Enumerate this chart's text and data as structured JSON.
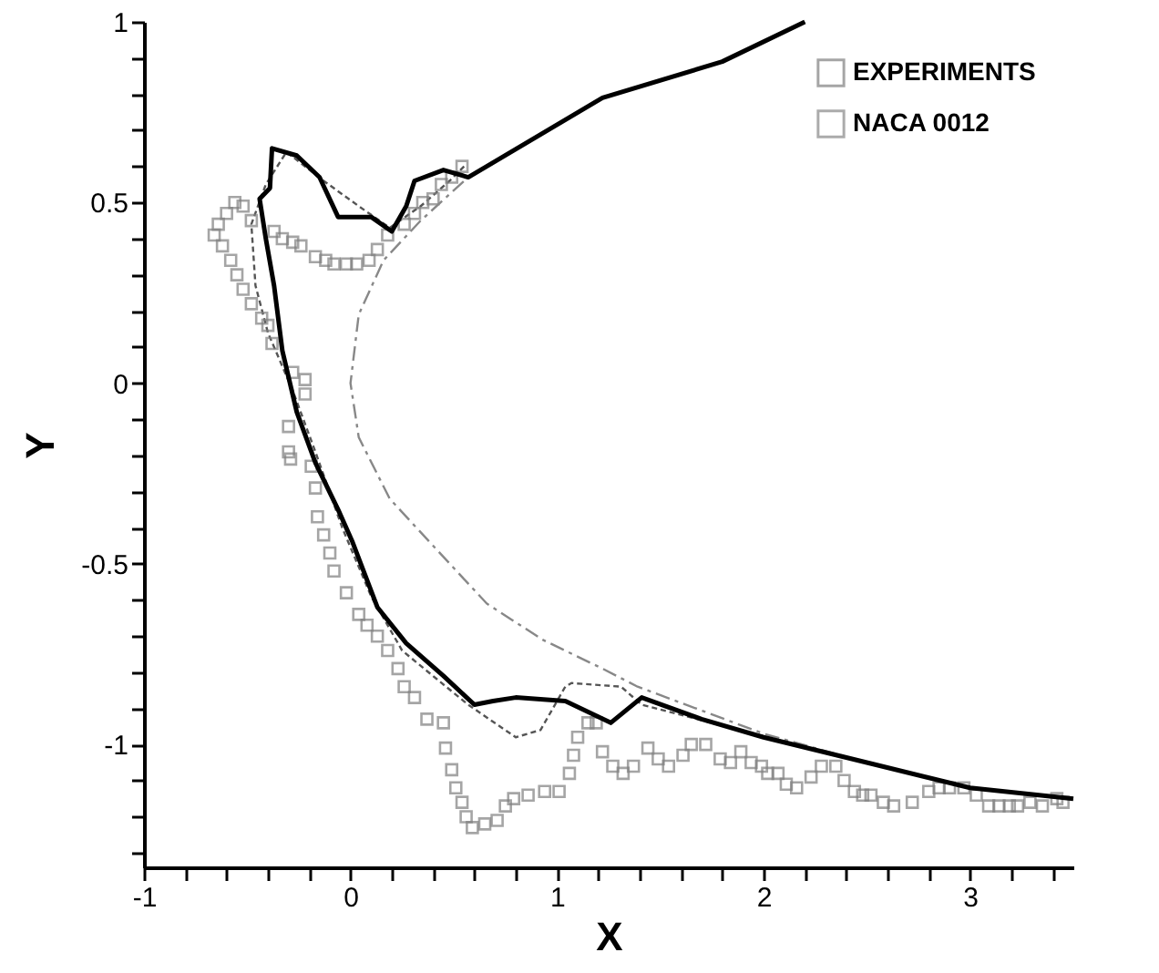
{
  "chart_data": {
    "type": "line",
    "xlabel": "X",
    "ylabel": "Y",
    "xlim": [
      -1,
      3.5
    ],
    "ylim": [
      -1.34,
      1
    ],
    "xticks": [
      -1,
      {
        "value": -0.8,
        "label": null
      },
      {
        "value": -0.6,
        "label": null
      },
      {
        "value": -0.4,
        "label": null
      },
      {
        "value": -0.2,
        "label": null
      },
      0,
      {
        "value": 0.2,
        "label": null
      },
      {
        "value": 0.4,
        "label": null
      },
      {
        "value": 0.6,
        "label": null
      },
      {
        "value": 0.8,
        "label": null
      },
      1,
      {
        "value": 1.2,
        "label": null
      },
      {
        "value": 1.4,
        "label": null
      },
      {
        "value": 1.6,
        "label": null
      },
      {
        "value": 1.8,
        "label": null
      },
      2,
      {
        "value": 2.2,
        "label": null
      },
      {
        "value": 2.4,
        "label": null
      },
      {
        "value": 2.6,
        "label": null
      },
      {
        "value": 2.8,
        "label": null
      },
      3,
      {
        "value": 3.2,
        "label": null
      },
      {
        "value": 3.4,
        "label": null
      }
    ],
    "yticks": [
      {
        "value": -1.3,
        "label": null
      },
      {
        "value": -1.2,
        "label": null
      },
      {
        "value": -1.1,
        "label": null
      },
      -1,
      {
        "value": -0.9,
        "label": null
      },
      {
        "value": -0.8,
        "label": null
      },
      {
        "value": -0.7,
        "label": null
      },
      {
        "value": -0.6,
        "label": null
      },
      -0.5,
      {
        "value": -0.4,
        "label": null
      },
      {
        "value": -0.3,
        "label": null
      },
      {
        "value": -0.2,
        "label": null
      },
      {
        "value": -0.1,
        "label": null
      },
      0,
      {
        "value": 0.1,
        "label": null
      },
      {
        "value": 0.2,
        "label": null
      },
      {
        "value": 0.3,
        "label": null
      },
      {
        "value": 0.4,
        "label": null
      },
      0.5,
      {
        "value": 0.6,
        "label": null
      },
      {
        "value": 0.7,
        "label": null
      },
      {
        "value": 0.8,
        "label": null
      },
      {
        "value": 0.9,
        "label": null
      },
      1
    ],
    "grid": false,
    "legend": "top right",
    "series": [
      {
        "type": "line",
        "line_style": "dotted",
        "color": "#555555",
        "x": [
          0.55,
          0.48,
          0.34,
          0.19,
          0.04,
          -0.13,
          -0.31,
          -0.41,
          -0.48,
          -0.46,
          -0.4,
          -0.28,
          -0.17,
          -0.04,
          0.1,
          0.25,
          0.42,
          0.57,
          0.8,
          0.92,
          1.04,
          1.07,
          1.31,
          1.41,
          1.95,
          2.5,
          3.0,
          3.5
        ],
        "values": [
          0.6,
          0.56,
          0.49,
          0.43,
          0.49,
          0.56,
          0.64,
          0.55,
          0.44,
          0.27,
          0.14,
          -0.02,
          -0.19,
          -0.4,
          -0.59,
          -0.74,
          -0.82,
          -0.89,
          -0.98,
          -0.96,
          -0.84,
          -0.83,
          -0.84,
          -0.89,
          -0.97,
          -1.05,
          -1.12,
          -1.15
        ]
      },
      {
        "name": "EXPERIMENTS",
        "type": "scatter",
        "marker": "square",
        "color": "#808080",
        "x": [
          0.54,
          0.49,
          0.44,
          0.4,
          0.35,
          0.31,
          0.26,
          0.18,
          0.13,
          0.09,
          0.03,
          -0.02,
          -0.08,
          -0.12,
          -0.17,
          -0.24,
          -0.28,
          -0.33,
          -0.37,
          -0.48,
          -0.52,
          -0.56,
          -0.6,
          -0.64,
          -0.66,
          -0.62,
          -0.58,
          -0.55,
          -0.52,
          -0.48,
          -0.43,
          -0.4,
          -0.38,
          -0.28,
          -0.22,
          -0.22,
          -0.3,
          -0.3,
          -0.29,
          -0.19,
          -0.17,
          -0.16,
          -0.13,
          -0.1,
          -0.08,
          -0.02,
          0.04,
          0.08,
          0.13,
          0.18,
          0.23,
          0.26,
          0.31,
          0.37,
          0.45,
          0.46,
          0.49,
          0.51,
          0.54,
          0.56,
          0.59,
          0.65,
          0.71,
          0.75,
          0.79,
          0.86,
          0.94,
          1.01,
          1.06,
          1.08,
          1.1,
          1.15,
          1.19,
          1.22,
          1.27,
          1.32,
          1.37,
          1.44,
          1.49,
          1.54,
          1.61,
          1.65,
          1.72,
          1.79,
          1.84,
          1.89,
          1.94,
          1.99,
          2.02,
          2.07,
          2.11,
          2.16,
          2.23,
          2.28,
          2.35,
          2.39,
          2.44,
          2.48,
          2.52,
          2.58,
          2.63,
          2.72,
          2.8,
          2.85,
          2.9,
          2.97,
          3.03,
          3.09,
          3.14,
          3.19,
          3.23,
          3.29,
          3.35,
          3.42,
          3.45
        ],
        "values": [
          0.6,
          0.57,
          0.55,
          0.51,
          0.5,
          0.47,
          0.44,
          0.41,
          0.37,
          0.34,
          0.33,
          0.33,
          0.33,
          0.34,
          0.35,
          0.38,
          0.39,
          0.4,
          0.42,
          0.45,
          0.49,
          0.5,
          0.47,
          0.44,
          0.41,
          0.38,
          0.34,
          0.3,
          0.26,
          0.22,
          0.18,
          0.16,
          0.11,
          0.03,
          0.01,
          -0.03,
          -0.12,
          -0.19,
          -0.21,
          -0.23,
          -0.29,
          -0.37,
          -0.42,
          -0.47,
          -0.52,
          -0.58,
          -0.64,
          -0.67,
          -0.7,
          -0.74,
          -0.79,
          -0.84,
          -0.87,
          -0.93,
          -0.94,
          -1.01,
          -1.07,
          -1.12,
          -1.16,
          -1.2,
          -1.23,
          -1.22,
          -1.21,
          -1.17,
          -1.15,
          -1.14,
          -1.13,
          -1.13,
          -1.08,
          -1.03,
          -0.98,
          -0.94,
          -0.94,
          -1.02,
          -1.06,
          -1.08,
          -1.06,
          -1.01,
          -1.04,
          -1.06,
          -1.03,
          -1.0,
          -1.0,
          -1.04,
          -1.05,
          -1.02,
          -1.05,
          -1.06,
          -1.08,
          -1.08,
          -1.11,
          -1.12,
          -1.09,
          -1.06,
          -1.06,
          -1.1,
          -1.13,
          -1.14,
          -1.14,
          -1.16,
          -1.17,
          -1.16,
          -1.13,
          -1.12,
          -1.12,
          -1.12,
          -1.14,
          -1.17,
          -1.17,
          -1.17,
          -1.17,
          -1.16,
          -1.17,
          -1.15,
          -1.16
        ]
      },
      {
        "name": "NACA 0012",
        "type": "line",
        "line_style": "dashed",
        "color": "#888888",
        "x": [
          2.2,
          1.8,
          1.22,
          0.57,
          0.34,
          0.16,
          0.04,
          0,
          0.04,
          0.19,
          0.4,
          0.66,
          0.93,
          1.22,
          1.39,
          2.0,
          2.5,
          3.0,
          3.5
        ],
        "values": [
          1.0,
          0.89,
          0.79,
          0.57,
          0.45,
          0.34,
          0.19,
          0,
          -0.15,
          -0.32,
          -0.45,
          -0.61,
          -0.71,
          -0.79,
          -0.84,
          -0.97,
          -1.05,
          -1.12,
          -1.15
        ]
      },
      {
        "type": "line",
        "line_style": "solid",
        "color": "#000000",
        "x": [
          2.2,
          1.8,
          1.22,
          0.57,
          0.45,
          0.31,
          0.27,
          0.2,
          0.1,
          -0.06,
          -0.15,
          -0.26,
          -0.38,
          -0.39,
          -0.44,
          -0.41,
          -0.37,
          -0.33,
          -0.26,
          -0.17,
          -0.06,
          0.01,
          0.13,
          0.27,
          0.45,
          0.6,
          0.69,
          0.8,
          1.04,
          1.26,
          1.41,
          1.7,
          2.0,
          2.5,
          3.0,
          3.5
        ],
        "values": [
          1.0,
          0.89,
          0.79,
          0.57,
          0.59,
          0.56,
          0.49,
          0.42,
          0.46,
          0.46,
          0.57,
          0.63,
          0.65,
          0.54,
          0.51,
          0.4,
          0.27,
          0.09,
          -0.08,
          -0.22,
          -0.35,
          -0.44,
          -0.62,
          -0.72,
          -0.81,
          -0.89,
          -0.88,
          -0.87,
          -0.88,
          -0.94,
          -0.87,
          -0.93,
          -0.98,
          -1.05,
          -1.12,
          -1.15
        ]
      }
    ]
  }
}
